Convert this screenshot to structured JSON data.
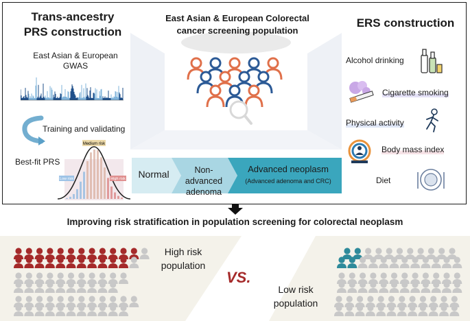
{
  "left_panel": {
    "title": "Trans-ancestry PRS construction",
    "gwas_label": "East Asian & European GWAS",
    "training_label": "Training and validating",
    "best_fit_label": "Best-fit PRS",
    "curve_top_label": "Medium risk",
    "curve_low_label": "Low risk",
    "curve_high_label": "High risk"
  },
  "center_panel": {
    "title": "East Asian & European Colorectal cancer screening population",
    "stages": [
      {
        "label": "Normal",
        "sub": ""
      },
      {
        "label": "Non-advanced adenoma",
        "sub": ""
      },
      {
        "label": "Advanced neoplasm",
        "sub": "(Advanced adenoma and CRC)"
      }
    ]
  },
  "right_panel": {
    "title": "ERS construction",
    "factors": [
      {
        "label": "Alcohol drinking",
        "icon": "bottles-icon"
      },
      {
        "label": "Cigarette smoking",
        "icon": "cigarette-icon"
      },
      {
        "label": "Physical activity",
        "icon": "running-icon"
      },
      {
        "label": "Body mass index",
        "icon": "scale-icon"
      },
      {
        "label": "Diet",
        "icon": "plate-icon"
      }
    ]
  },
  "bottom": {
    "title": "Improving risk stratification  in population screening for colorectal neoplasm",
    "high_risk": "High risk population",
    "low_risk": "Low risk population",
    "vs": "VS."
  },
  "colors": {
    "orange": "#e0704a",
    "blue": "#2c5a96",
    "red_person": "#a52a2a",
    "teal_person": "#2e8a9a",
    "grey_person": "#c8c8c8",
    "stage1": "#d6ecf2",
    "stage2": "#a9d6e3",
    "stage3": "#3aa6bd"
  }
}
